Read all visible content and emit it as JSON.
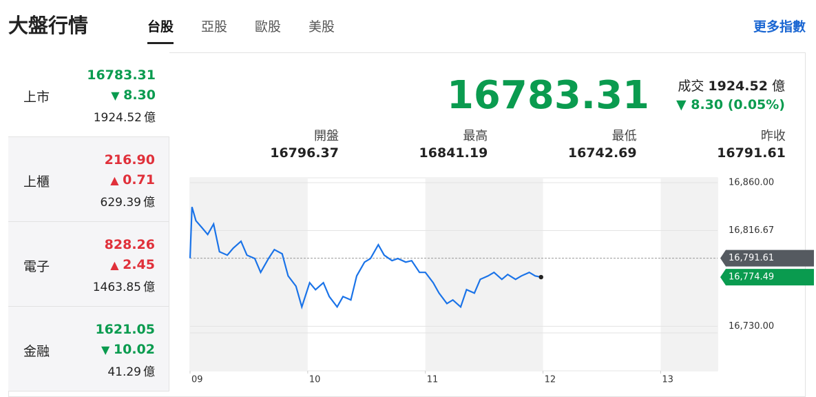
{
  "header": {
    "title": "大盤行情",
    "tabs": [
      "台股",
      "亞股",
      "歐股",
      "美股"
    ],
    "more_link": "更多指數"
  },
  "markets": [
    {
      "name": "上市",
      "price": "16783.31",
      "change": "8.30",
      "direction": "down",
      "volume": "1924.52",
      "unit": "億"
    },
    {
      "name": "上櫃",
      "price": "216.90",
      "change": "0.71",
      "direction": "up",
      "volume": "629.39",
      "unit": "億"
    },
    {
      "name": "電子",
      "price": "828.26",
      "change": "2.45",
      "direction": "up",
      "volume": "1463.85",
      "unit": "億"
    },
    {
      "name": "金融",
      "price": "1621.05",
      "change": "10.02",
      "direction": "down",
      "volume": "41.29",
      "unit": "億"
    }
  ],
  "summary": {
    "price": "16783.31",
    "volume_label": "成交",
    "volume": "1924.52",
    "unit": "億",
    "change": "8.30 (0.05%)",
    "direction": "down",
    "stats": [
      {
        "label": "開盤",
        "value": "16796.37"
      },
      {
        "label": "最高",
        "value": "16841.19"
      },
      {
        "label": "最低",
        "value": "16742.69"
      },
      {
        "label": "昨收",
        "value": "16791.61"
      }
    ]
  },
  "chart_data": {
    "type": "line",
    "color": "#1a73e8",
    "x": [
      0,
      1,
      3,
      6,
      9,
      12,
      15,
      19,
      22,
      26,
      29,
      33,
      36,
      40,
      43,
      47,
      50,
      54,
      57,
      61,
      64,
      68,
      71,
      75,
      78,
      82,
      85,
      89,
      92,
      96,
      99,
      103,
      106,
      110,
      113,
      117,
      120,
      124,
      127,
      131,
      134,
      138,
      141,
      145,
      148,
      152,
      155,
      159,
      162,
      166,
      169,
      173,
      176,
      179
    ],
    "values": [
      16791.6,
      16838,
      16825.6,
      16819.4,
      16813.1,
      16822.5,
      16797.5,
      16794.4,
      16800.6,
      16806.9,
      16794.4,
      16791.3,
      16778.8,
      16791.3,
      16799.4,
      16795.6,
      16775.6,
      16766.3,
      16747.5,
      16769.4,
      16763.1,
      16769.4,
      16756.9,
      16747.5,
      16756.9,
      16753.8,
      16775.6,
      16788.1,
      16791.3,
      16803.8,
      16794.4,
      16789.4,
      16791.3,
      16788.1,
      16789.4,
      16778.8,
      16778.8,
      16769.4,
      16760,
      16750.6,
      16753.8,
      16747.5,
      16763.1,
      16760,
      16772.5,
      16775.6,
      16778.8,
      16772.5,
      16776.9,
      16772.5,
      16775.6,
      16778.8,
      16775.6,
      16774.5
    ],
    "xlim": [
      0,
      269
    ],
    "xticks": [
      {
        "value": 0,
        "label": "09"
      },
      {
        "value": 60,
        "label": "10"
      },
      {
        "value": 120,
        "label": "11"
      },
      {
        "value": 180,
        "label": "12"
      },
      {
        "value": 240,
        "label": "13"
      }
    ],
    "ylim": [
      16724,
      16864.4
    ],
    "yticks": [
      {
        "value": 16860,
        "label": "16,860.00"
      },
      {
        "value": 16816.67,
        "label": "16,816.67"
      },
      {
        "value": 16730,
        "label": "16,730.00"
      }
    ],
    "grid": true,
    "reference_lines": [
      {
        "value": 16791.61,
        "label": "16,791.61",
        "color": "#555a60",
        "dashed": true
      },
      {
        "value": 16774.49,
        "label": "16,774.49",
        "color": "#0a9b4f",
        "dashed": false
      }
    ]
  }
}
